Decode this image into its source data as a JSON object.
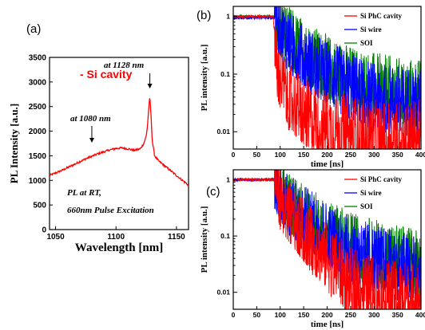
{
  "chart_data": [
    {
      "panel": "(a)",
      "type": "line",
      "xlabel": "Wavelength [nm]",
      "ylabel": "PL Intensity [a.u.]",
      "xlim": [
        1045,
        1160
      ],
      "ylim": [
        0,
        3500
      ],
      "x_ticks": [
        1050,
        1100,
        1150
      ],
      "y_ticks": [
        0,
        500,
        1000,
        1500,
        2000,
        2500,
        3000,
        3500
      ],
      "legend": "top-left",
      "series": [
        {
          "name": "- Si cavity",
          "color": "#ff0000",
          "x": [
            1045,
            1055,
            1065,
            1075,
            1085,
            1095,
            1100,
            1105,
            1110,
            1115,
            1120,
            1123,
            1125,
            1126,
            1127,
            1128,
            1129,
            1130,
            1132,
            1135,
            1140,
            1145,
            1150,
            1155,
            1160
          ],
          "values": [
            1100,
            1200,
            1320,
            1440,
            1540,
            1620,
            1650,
            1660,
            1640,
            1610,
            1640,
            1750,
            1900,
            2100,
            2450,
            2700,
            2300,
            1800,
            1500,
            1400,
            1300,
            1200,
            1100,
            1000,
            900
          ]
        }
      ],
      "annotations": [
        {
          "text": "at 1128 nm",
          "x": 1128,
          "y": 2700
        },
        {
          "text": "at 1080 nm",
          "x": 1080,
          "y": 1530
        },
        {
          "text": "PL at RT,",
          "x": 1058,
          "y": 750
        },
        {
          "text": "660nm Pulse Excitation",
          "x": 1058,
          "y": 400
        }
      ]
    },
    {
      "panel": "(b)",
      "type": "line",
      "xlabel": "time [ns]",
      "ylabel": "PL intensity [a.u.]",
      "xlim": [
        0,
        400
      ],
      "ylim": [
        0.005,
        1.5
      ],
      "log_y": true,
      "x_ticks": [
        0,
        50,
        100,
        150,
        200,
        250,
        300,
        350,
        400
      ],
      "y_ticks": [
        0.01,
        0.1,
        1
      ],
      "y_tick_labels": [
        "0.01",
        "0.1",
        "1"
      ],
      "legend": "top-right",
      "series": [
        {
          "name": "Si PhC cavity",
          "color": "#ff0000",
          "x": [
            0,
            85,
            88,
            90,
            95,
            100,
            120,
            150,
            200,
            250,
            300,
            350,
            400
          ],
          "values": [
            1,
            1,
            0.5,
            0.2,
            0.12,
            0.08,
            0.04,
            0.02,
            0.012,
            0.01,
            0.008,
            0.008,
            0.008
          ]
        },
        {
          "name": "Si wire",
          "color": "#0000ff",
          "x": [
            0,
            90,
            100,
            120,
            150,
            200,
            250,
            300,
            350,
            400
          ],
          "values": [
            0.95,
            0.95,
            0.6,
            0.35,
            0.2,
            0.1,
            0.06,
            0.04,
            0.035,
            0.03
          ]
        },
        {
          "name": "SOI",
          "color": "#008000",
          "x": [
            0,
            90,
            100,
            120,
            150,
            200,
            250,
            300,
            350,
            400
          ],
          "values": [
            1,
            1,
            0.7,
            0.42,
            0.25,
            0.13,
            0.08,
            0.06,
            0.05,
            0.045
          ]
        }
      ]
    },
    {
      "panel": "(c)",
      "type": "line",
      "xlabel": "time [ns]",
      "ylabel": "PL intensity [a.u.]",
      "xlim": [
        0,
        400
      ],
      "ylim": [
        0.005,
        1.5
      ],
      "log_y": true,
      "x_ticks": [
        0,
        50,
        100,
        150,
        200,
        250,
        300,
        350,
        400
      ],
      "y_ticks": [
        0.01,
        0.1,
        1
      ],
      "y_tick_labels": [
        "0.01",
        "0.1",
        "1"
      ],
      "legend": "top-right",
      "series": [
        {
          "name": "Si PhC cavity",
          "color": "#ff0000",
          "x": [
            0,
            90,
            100,
            120,
            150,
            200,
            250,
            300,
            350,
            400
          ],
          "values": [
            1,
            1,
            0.45,
            0.25,
            0.12,
            0.04,
            0.015,
            0.01,
            0.008,
            0.008
          ]
        },
        {
          "name": "Si wire",
          "color": "#0000ff",
          "x": [
            0,
            90,
            100,
            120,
            150,
            200,
            250,
            300,
            350,
            400
          ],
          "values": [
            1,
            1,
            0.55,
            0.35,
            0.22,
            0.11,
            0.06,
            0.04,
            0.03,
            0.025
          ]
        },
        {
          "name": "SOI",
          "color": "#008000",
          "x": [
            0,
            90,
            100,
            120,
            150,
            200,
            250,
            300,
            350,
            400
          ],
          "values": [
            1,
            1,
            0.6,
            0.38,
            0.23,
            0.12,
            0.07,
            0.05,
            0.04,
            0.035
          ]
        }
      ]
    }
  ]
}
